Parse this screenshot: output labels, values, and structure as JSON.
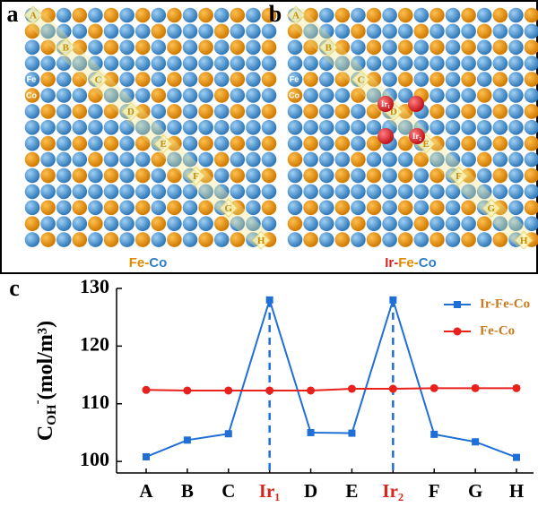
{
  "panels": [
    {
      "letter": "a",
      "site_labels": [
        "A",
        "B",
        "C",
        "D",
        "E",
        "F",
        "G",
        "H"
      ],
      "element_labels": [
        "Fe",
        "Co"
      ],
      "caption": [
        {
          "text": "Fe",
          "color": "#e08a00"
        },
        {
          "text": "-",
          "color": "#e08a00"
        },
        {
          "text": "Co",
          "color": "#2f7fc8"
        }
      ]
    },
    {
      "letter": "b",
      "site_labels": [
        "A",
        "B",
        "C",
        "D",
        "E",
        "F",
        "G",
        "H"
      ],
      "element_labels": [
        "Fe",
        "Co"
      ],
      "ir_labels": [
        "Ir₁",
        "Ir₂"
      ],
      "caption": [
        {
          "text": "Ir",
          "color": "#d8261e"
        },
        {
          "text": "-",
          "color": "#d8261e"
        },
        {
          "text": "Fe",
          "color": "#e08a00"
        },
        {
          "text": "-",
          "color": "#e08a00"
        },
        {
          "text": "Co",
          "color": "#2f7fc8"
        }
      ]
    }
  ],
  "chart_data": {
    "type": "line",
    "panel_letter": "c",
    "y_label": {
      "main": "C",
      "sub": "OH",
      "sup": "-",
      "unit": "(mol/m³)"
    },
    "categories": [
      "A",
      "B",
      "C",
      "Ir₁",
      "D",
      "E",
      "Ir₂",
      "F",
      "G",
      "H"
    ],
    "category_colors": [
      "#000",
      "#000",
      "#000",
      "#d8261e",
      "#000",
      "#000",
      "#d8261e",
      "#000",
      "#000",
      "#000"
    ],
    "series": [
      {
        "name": "Ir-Fe-Co",
        "color": "#1f6fd6",
        "marker": "square",
        "values": [
          100.8,
          103.7,
          104.8,
          128,
          105,
          104.9,
          128,
          104.7,
          103.4,
          100.7
        ]
      },
      {
        "name": "Fe-Co",
        "color": "#e8211c",
        "marker": "circle",
        "values": [
          112.4,
          112.3,
          112.3,
          112.3,
          112.3,
          112.6,
          112.6,
          112.7,
          112.7,
          112.7
        ]
      }
    ],
    "ylim": [
      98,
      130
    ],
    "yticks": [
      100,
      110,
      120,
      130
    ],
    "legend": "upper right"
  }
}
